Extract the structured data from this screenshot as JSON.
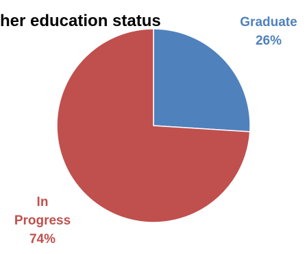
{
  "chart_data": {
    "type": "pie",
    "title": "her education status",
    "slices": [
      {
        "label": "Graduate",
        "value": 26,
        "value_label": "26%",
        "color": "#4F81BD"
      },
      {
        "label": "In Progress",
        "value": 74,
        "value_label": "74%",
        "color": "#C0504D",
        "label_lines": [
          "In",
          "Progress"
        ]
      }
    ],
    "start_angle_deg": 0,
    "direction": "clockwise",
    "legend": "none",
    "data_labels": "outside"
  }
}
